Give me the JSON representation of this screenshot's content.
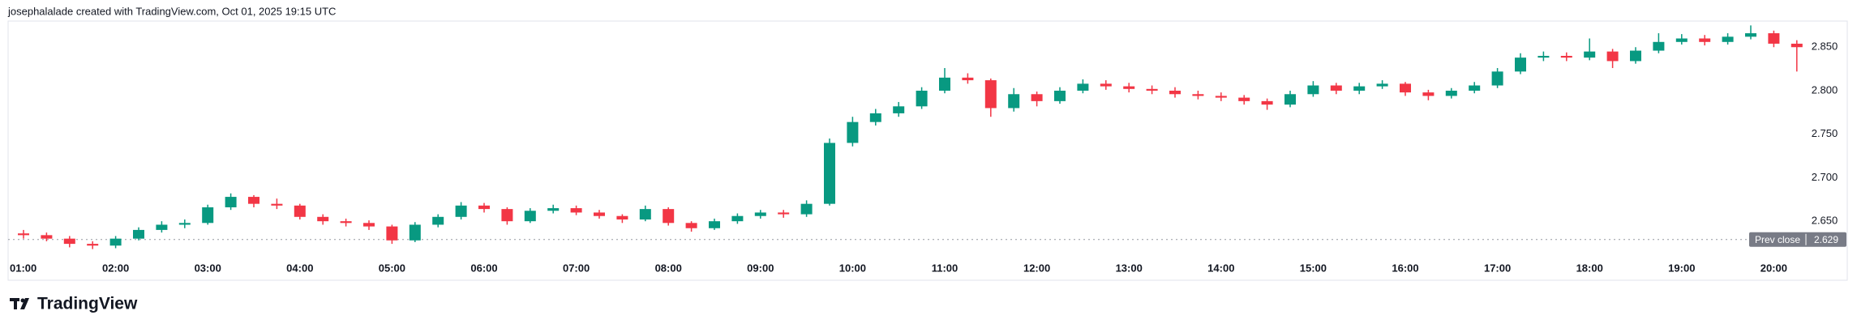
{
  "header": "josephalalade created with TradingView.com, Oct 01, 2025 19:15 UTC",
  "logo": "TradingView",
  "chart_data": {
    "type": "candlestick",
    "x": [
      "01:00",
      "01:15",
      "01:30",
      "01:45",
      "02:00",
      "02:15",
      "02:30",
      "02:45",
      "03:00",
      "03:15",
      "03:30",
      "03:45",
      "04:00",
      "04:15",
      "04:30",
      "04:45",
      "05:00",
      "05:15",
      "05:30",
      "05:45",
      "06:00",
      "06:15",
      "06:30",
      "06:45",
      "07:00",
      "07:15",
      "07:30",
      "07:45",
      "08:00",
      "08:15",
      "08:30",
      "08:45",
      "09:00",
      "09:15",
      "09:30",
      "09:45",
      "10:00",
      "10:15",
      "10:30",
      "10:45",
      "11:00",
      "11:15",
      "11:30",
      "11:45",
      "12:00",
      "12:15",
      "12:30",
      "12:45",
      "13:00",
      "13:15",
      "13:30",
      "13:45",
      "14:00",
      "14:15",
      "14:30",
      "14:45",
      "15:00",
      "15:15",
      "15:30",
      "15:45",
      "16:00",
      "16:15",
      "16:30",
      "16:45",
      "17:00",
      "17:15",
      "17:30",
      "17:45",
      "18:00",
      "18:15",
      "18:30",
      "18:45",
      "19:00",
      "19:15",
      "19:30",
      "19:45",
      "20:00",
      "20:15"
    ],
    "open": [
      2.636,
      2.634,
      2.63,
      2.624,
      2.622,
      2.63,
      2.64,
      2.646,
      2.648,
      2.666,
      2.678,
      2.67,
      2.668,
      2.655,
      2.65,
      2.648,
      2.644,
      2.628,
      2.646,
      2.655,
      2.668,
      2.664,
      2.65,
      2.662,
      2.665,
      2.66,
      2.656,
      2.652,
      2.664,
      2.648,
      2.642,
      2.65,
      2.656,
      2.66,
      2.658,
      2.67,
      2.74,
      2.764,
      2.774,
      2.782,
      2.8,
      2.815,
      2.812,
      2.78,
      2.796,
      2.788,
      2.8,
      2.808,
      2.805,
      2.802,
      2.8,
      2.796,
      2.794,
      2.792,
      2.788,
      2.784,
      2.796,
      2.806,
      2.8,
      2.805,
      2.808,
      2.798,
      2.794,
      2.8,
      2.806,
      2.822,
      2.838,
      2.84,
      2.838,
      2.845,
      2.834,
      2.846,
      2.856,
      2.86,
      2.856,
      2.862,
      2.866,
      2.854
    ],
    "high": [
      2.64,
      2.637,
      2.633,
      2.627,
      2.633,
      2.643,
      2.65,
      2.652,
      2.669,
      2.682,
      2.68,
      2.676,
      2.67,
      2.658,
      2.653,
      2.651,
      2.646,
      2.649,
      2.658,
      2.672,
      2.671,
      2.666,
      2.665,
      2.669,
      2.668,
      2.663,
      2.658,
      2.668,
      2.666,
      2.65,
      2.653,
      2.659,
      2.663,
      2.663,
      2.674,
      2.745,
      2.77,
      2.779,
      2.787,
      2.804,
      2.826,
      2.82,
      2.814,
      2.803,
      2.799,
      2.804,
      2.813,
      2.812,
      2.809,
      2.806,
      2.804,
      2.8,
      2.798,
      2.795,
      2.791,
      2.8,
      2.811,
      2.809,
      2.809,
      2.812,
      2.81,
      2.801,
      2.803,
      2.81,
      2.826,
      2.843,
      2.845,
      2.844,
      2.86,
      2.848,
      2.85,
      2.866,
      2.865,
      2.864,
      2.866,
      2.875,
      2.869,
      2.858
    ],
    "low": [
      2.63,
      2.627,
      2.62,
      2.618,
      2.619,
      2.628,
      2.637,
      2.642,
      2.646,
      2.663,
      2.666,
      2.664,
      2.652,
      2.646,
      2.644,
      2.64,
      2.624,
      2.626,
      2.643,
      2.652,
      2.66,
      2.646,
      2.648,
      2.659,
      2.657,
      2.653,
      2.648,
      2.65,
      2.645,
      2.638,
      2.64,
      2.647,
      2.653,
      2.654,
      2.655,
      2.668,
      2.736,
      2.76,
      2.77,
      2.779,
      2.797,
      2.808,
      2.77,
      2.776,
      2.782,
      2.785,
      2.797,
      2.801,
      2.798,
      2.796,
      2.792,
      2.79,
      2.788,
      2.784,
      2.778,
      2.781,
      2.793,
      2.796,
      2.796,
      2.802,
      2.794,
      2.789,
      2.791,
      2.797,
      2.803,
      2.819,
      2.834,
      2.834,
      2.835,
      2.826,
      2.831,
      2.843,
      2.853,
      2.852,
      2.853,
      2.859,
      2.85,
      2.822
    ],
    "close": [
      2.634,
      2.63,
      2.624,
      2.622,
      2.63,
      2.64,
      2.646,
      2.648,
      2.666,
      2.678,
      2.67,
      2.668,
      2.655,
      2.65,
      2.648,
      2.644,
      2.628,
      2.646,
      2.655,
      2.668,
      2.664,
      2.65,
      2.662,
      2.665,
      2.66,
      2.656,
      2.652,
      2.664,
      2.648,
      2.642,
      2.65,
      2.656,
      2.66,
      2.658,
      2.67,
      2.74,
      2.764,
      2.774,
      2.782,
      2.8,
      2.815,
      2.812,
      2.78,
      2.796,
      2.788,
      2.8,
      2.808,
      2.805,
      2.802,
      2.8,
      2.796,
      2.794,
      2.792,
      2.788,
      2.784,
      2.796,
      2.806,
      2.8,
      2.805,
      2.808,
      2.798,
      2.794,
      2.8,
      2.806,
      2.822,
      2.838,
      2.84,
      2.838,
      2.845,
      2.834,
      2.846,
      2.856,
      2.86,
      2.856,
      2.862,
      2.866,
      2.854,
      2.85
    ],
    "up_color": "#089981",
    "down_color": "#f23645",
    "ylim": [
      2.612,
      2.88
    ],
    "yticks": [
      {
        "value": 2.65,
        "label": "2.650"
      },
      {
        "value": 2.7,
        "label": "2.700"
      },
      {
        "value": 2.75,
        "label": "2.750"
      },
      {
        "value": 2.8,
        "label": "2.800"
      },
      {
        "value": 2.85,
        "label": "2.850"
      }
    ],
    "xticks": [
      "01:00",
      "02:00",
      "03:00",
      "04:00",
      "05:00",
      "06:00",
      "07:00",
      "08:00",
      "09:00",
      "10:00",
      "11:00",
      "12:00",
      "13:00",
      "14:00",
      "15:00",
      "16:00",
      "17:00",
      "18:00",
      "19:00",
      "20:00"
    ],
    "prev_close": {
      "label": "Prev close",
      "value": 2.629
    }
  }
}
